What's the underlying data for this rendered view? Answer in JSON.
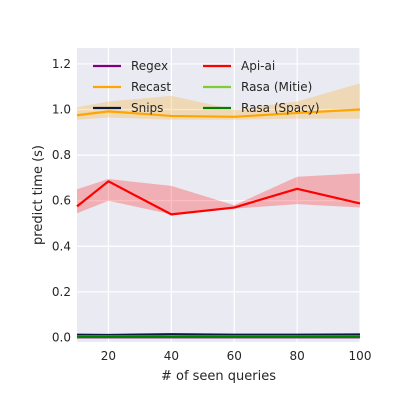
{
  "chart_data": {
    "type": "line",
    "xlabel": "# of seen queries",
    "ylabel": "predict time (s)",
    "xlim": [
      10,
      100
    ],
    "ylim": [
      -0.02,
      1.27
    ],
    "xticks": [
      20,
      40,
      60,
      80,
      100
    ],
    "yticks": [
      0.0,
      0.2,
      0.4,
      0.6,
      0.8,
      1.0,
      1.2
    ],
    "grid": true,
    "background": "#eaeaf2",
    "legend_position": "top-left",
    "legend_columns": 2,
    "series": [
      {
        "name": "Regex",
        "color": "#800080",
        "x": [
          10,
          20,
          40,
          60,
          80,
          100
        ],
        "values": [
          0.001,
          0.001,
          0.001,
          0.001,
          0.001,
          0.001
        ]
      },
      {
        "name": "Recast",
        "color": "#ffa500",
        "x": [
          10,
          20,
          40,
          60,
          80,
          100
        ],
        "values": [
          0.975,
          0.992,
          0.972,
          0.968,
          0.985,
          1.0
        ],
        "band_low": [
          0.955,
          0.965,
          0.955,
          0.955,
          0.96,
          0.96
        ],
        "band_high": [
          1.01,
          1.035,
          1.06,
          1.0,
          1.035,
          1.115
        ]
      },
      {
        "name": "Snips",
        "color": "#0b1a3f",
        "x": [
          10,
          20,
          40,
          60,
          80,
          100
        ],
        "values": [
          0.012,
          0.011,
          0.014,
          0.012,
          0.012,
          0.013
        ]
      },
      {
        "name": "Api-ai",
        "color": "#ff0000",
        "x": [
          10,
          20,
          40,
          60,
          80,
          100
        ],
        "values": [
          0.575,
          0.685,
          0.54,
          0.57,
          0.652,
          0.588
        ],
        "band_low": [
          0.545,
          0.6,
          0.54,
          0.565,
          0.585,
          0.57
        ],
        "band_high": [
          0.65,
          0.695,
          0.665,
          0.58,
          0.705,
          0.72
        ]
      },
      {
        "name": "Rasa (Mitie)",
        "color": "#7fcc33",
        "x": [
          10,
          20,
          40,
          60,
          80,
          100
        ],
        "values": [
          0.004,
          0.004,
          0.004,
          0.004,
          0.004,
          0.004
        ]
      },
      {
        "name": "Rasa (Spacy)",
        "color": "#008000",
        "x": [
          10,
          20,
          40,
          60,
          80,
          100
        ],
        "values": [
          0.002,
          0.002,
          0.002,
          0.002,
          0.002,
          0.002
        ]
      }
    ]
  }
}
